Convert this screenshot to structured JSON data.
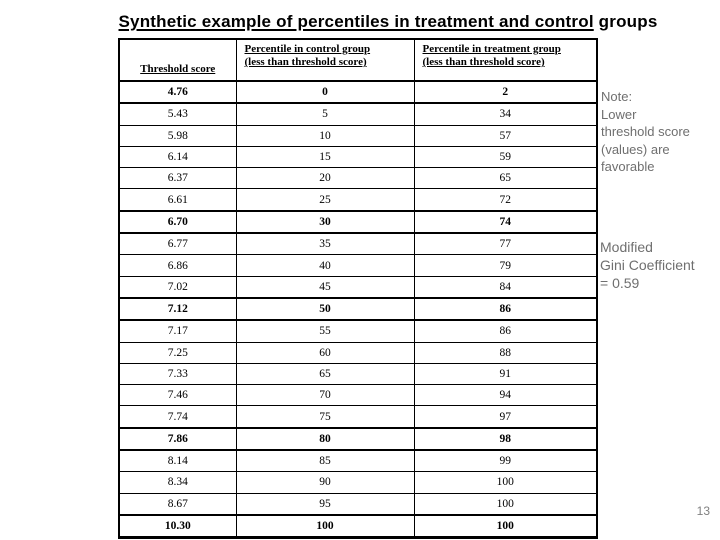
{
  "slide": {
    "title": {
      "underlined": "Synthetic example of percentiles in treatment and control",
      "rest": " groups"
    },
    "page_number": "13"
  },
  "table": {
    "headers": [
      {
        "line1": "Threshold score",
        "line2": ""
      },
      {
        "line1": "Percentile in control group",
        "line2": "(less than threshold score)"
      },
      {
        "line1": "Percentile in treatment group",
        "line2": "(less than threshold score)"
      }
    ],
    "rows": [
      {
        "cells": [
          "4.76",
          "0",
          "2"
        ],
        "bold": true
      },
      {
        "cells": [
          "5.43",
          "5",
          "34"
        ],
        "bold": false
      },
      {
        "cells": [
          "5.98",
          "10",
          "57"
        ],
        "bold": false
      },
      {
        "cells": [
          "6.14",
          "15",
          "59"
        ],
        "bold": false
      },
      {
        "cells": [
          "6.37",
          "20",
          "65"
        ],
        "bold": false
      },
      {
        "cells": [
          "6.61",
          "25",
          "72"
        ],
        "bold": false
      },
      {
        "cells": [
          "6.70",
          "30",
          "74"
        ],
        "bold": true
      },
      {
        "cells": [
          "6.77",
          "35",
          "77"
        ],
        "bold": false
      },
      {
        "cells": [
          "6.86",
          "40",
          "79"
        ],
        "bold": false
      },
      {
        "cells": [
          "7.02",
          "45",
          "84"
        ],
        "bold": false
      },
      {
        "cells": [
          "7.12",
          "50",
          "86"
        ],
        "bold": true
      },
      {
        "cells": [
          "7.17",
          "55",
          "86"
        ],
        "bold": false
      },
      {
        "cells": [
          "7.25",
          "60",
          "88"
        ],
        "bold": false
      },
      {
        "cells": [
          "7.33",
          "65",
          "91"
        ],
        "bold": false
      },
      {
        "cells": [
          "7.46",
          "70",
          "94"
        ],
        "bold": false
      },
      {
        "cells": [
          "7.74",
          "75",
          "97"
        ],
        "bold": false
      },
      {
        "cells": [
          "7.86",
          "80",
          "98"
        ],
        "bold": true
      },
      {
        "cells": [
          "8.14",
          "85",
          "99"
        ],
        "bold": false
      },
      {
        "cells": [
          "8.34",
          "90",
          "100"
        ],
        "bold": false
      },
      {
        "cells": [
          "8.67",
          "95",
          "100"
        ],
        "bold": false
      },
      {
        "cells": [
          "10.30",
          "100",
          "100"
        ],
        "bold": true
      }
    ]
  },
  "notes": {
    "note_lines": [
      "Note:",
      "Lower",
      "threshold score",
      "(values) are",
      "favorable"
    ],
    "gini_lines": [
      "Modified",
      "Gini Coefficient",
      "= 0.59"
    ]
  },
  "colors": {
    "background": "#ffffff",
    "title_text": "#000000",
    "table_text": "#000000",
    "note_text": "#6f6f6f",
    "page_number_text": "#808080"
  }
}
